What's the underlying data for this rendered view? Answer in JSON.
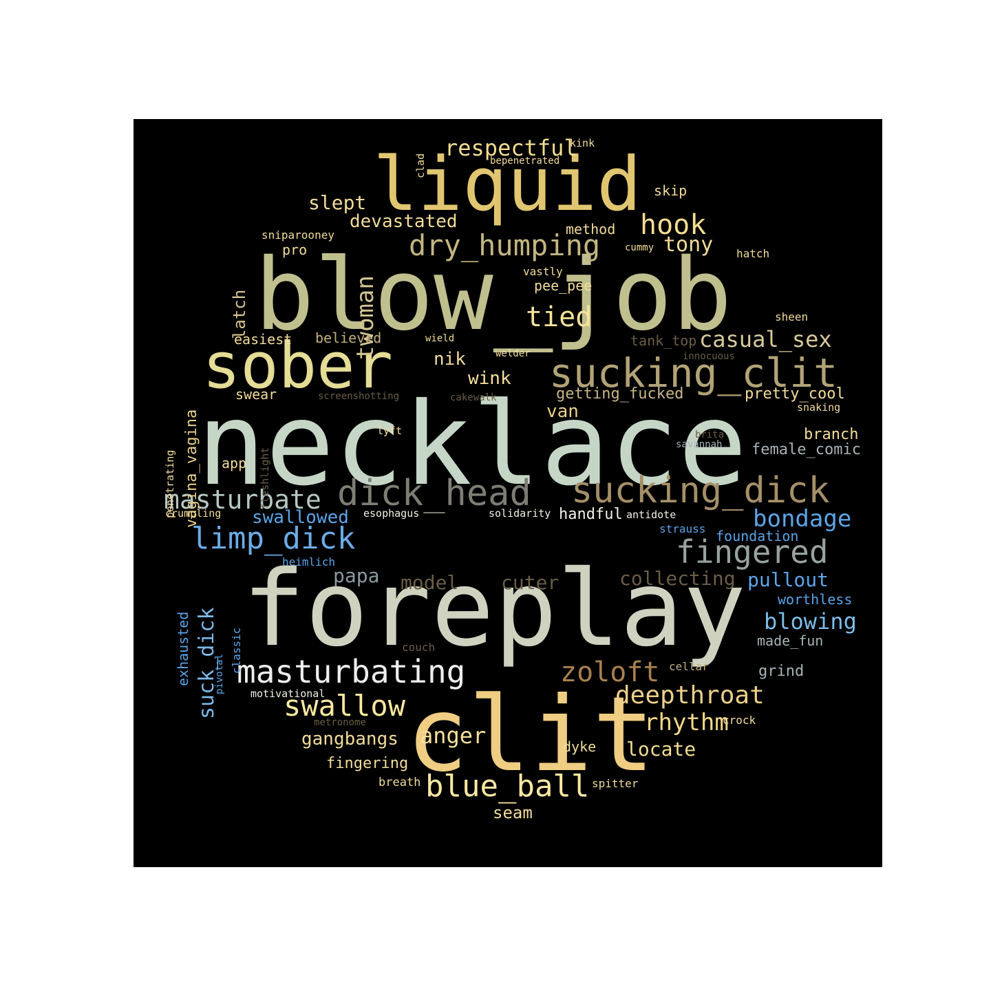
{
  "words": [
    {
      "id": "necklace",
      "text": "necklace",
      "color": "#c5d6c6"
    },
    {
      "id": "foreplay",
      "text": "foreplay",
      "color": "#d0d2c0"
    },
    {
      "id": "blow_job",
      "text": "blow_job",
      "color": "#c0bf8e"
    },
    {
      "id": "clit",
      "text": "clit",
      "color": "#efcd83"
    },
    {
      "id": "liquid",
      "text": "liquid",
      "color": "#e1c671"
    },
    {
      "id": "sober",
      "text": "sober",
      "color": "#e5dc96"
    },
    {
      "id": "sucking_clit",
      "text": "sucking_clit",
      "color": "#b2a377"
    },
    {
      "id": "sucking_dick",
      "text": "sucking_dick",
      "color": "#a58f68"
    },
    {
      "id": "dick_head",
      "text": "dick_head",
      "color": "#7e7d74"
    },
    {
      "id": "fingered",
      "text": "fingered",
      "color": "#97a39d"
    },
    {
      "id": "masturbating",
      "text": "masturbating",
      "color": "#eeeeee"
    },
    {
      "id": "masturbate",
      "text": "masturbate",
      "color": "#b5c7c3"
    },
    {
      "id": "limp_dick",
      "text": "limp_dick",
      "color": "#6cabe7"
    },
    {
      "id": "dry_humping",
      "text": "dry_humping",
      "color": "#c3b682"
    },
    {
      "id": "blue_ball",
      "text": "blue_ball",
      "color": "#fbe8a3"
    },
    {
      "id": "swallow",
      "text": "swallow",
      "color": "#fbe89f"
    },
    {
      "id": "zoloft",
      "text": "zoloft",
      "color": "#a8804f"
    },
    {
      "id": "deepthroat",
      "text": "deepthroat",
      "color": "#ecd08a"
    },
    {
      "id": "tied",
      "text": "tied",
      "color": "#f6e39a"
    },
    {
      "id": "hook",
      "text": "hook",
      "color": "#f4dd91"
    },
    {
      "id": "casual_sex",
      "text": "casual_sex",
      "color": "#d9c99b"
    },
    {
      "id": "bondage",
      "text": "bondage",
      "color": "#5ba5e8"
    },
    {
      "id": "respectful",
      "text": "respectful",
      "color": "#f4dd91"
    },
    {
      "id": "twoman",
      "text": "twoman",
      "color": "#d4c592"
    },
    {
      "id": "suck_dick",
      "text": "suck_dick",
      "color": "#7db9e9"
    },
    {
      "id": "rhythm",
      "text": "rhythm",
      "color": "#f3d88a"
    },
    {
      "id": "anger",
      "text": "anger",
      "color": "#f7e09a"
    },
    {
      "id": "blowing",
      "text": "blowing",
      "color": "#7cbde9"
    },
    {
      "id": "pullout",
      "text": "pullout",
      "color": "#5ba5e8"
    },
    {
      "id": "collecting",
      "text": "collecting",
      "color": "#6a5d47"
    },
    {
      "id": "devastated",
      "text": "devastated",
      "color": "#f3dc9a"
    },
    {
      "id": "tony",
      "text": "tony",
      "color": "#f3dc9a"
    },
    {
      "id": "slept",
      "text": "slept",
      "color": "#f3dc9a"
    },
    {
      "id": "swallowed",
      "text": "swallowed",
      "color": "#5ba5e8"
    },
    {
      "id": "locate",
      "text": "locate",
      "color": "#f4dd91"
    },
    {
      "id": "model",
      "text": "model",
      "color": "#6a5d47"
    },
    {
      "id": "cuter",
      "text": "cuter",
      "color": "#6a5d47"
    },
    {
      "id": "papa",
      "text": "papa",
      "color": "#8a9aa2"
    },
    {
      "id": "gangbangs",
      "text": "gangbangs",
      "color": "#f3dc9a"
    },
    {
      "id": "wink",
      "text": "wink",
      "color": "#f7e09a"
    },
    {
      "id": "nik",
      "text": "nik",
      "color": "#f3dc9a"
    },
    {
      "id": "van",
      "text": "van",
      "color": "#e8d08a"
    },
    {
      "id": "latch",
      "text": "latch",
      "color": "#d8c38e"
    },
    {
      "id": "vagina_vagina",
      "text": "vagina_vagina",
      "color": "#e8d08a"
    },
    {
      "id": "pretty_cool",
      "text": "pretty_cool",
      "color": "#f3dc9a"
    },
    {
      "id": "getting_fucked",
      "text": "getting_fucked",
      "color": "#c9b78a"
    },
    {
      "id": "branch",
      "text": "branch",
      "color": "#f3dc9a"
    },
    {
      "id": "female_comic",
      "text": "female_comic",
      "color": "#a6b3b8"
    },
    {
      "id": "fingering",
      "text": "fingering",
      "color": "#f3dc9a"
    },
    {
      "id": "easiest",
      "text": "easiest",
      "color": "#f3dc9a"
    },
    {
      "id": "believed",
      "text": "believed",
      "color": "#c3b07a"
    },
    {
      "id": "swear",
      "text": "swear",
      "color": "#f3dc9a"
    },
    {
      "id": "handful",
      "text": "handful",
      "color": "#f3f1e6"
    },
    {
      "id": "exhausted",
      "text": "exhausted",
      "color": "#5ba5e8"
    },
    {
      "id": "foundation",
      "text": "foundation",
      "color": "#5ba5e8"
    },
    {
      "id": "worthless",
      "text": "worthless",
      "color": "#5ba5e8"
    },
    {
      "id": "made_fun",
      "text": "made_fun",
      "color": "#a6b3b8"
    },
    {
      "id": "grind",
      "text": "grind",
      "color": "#a6b3b8"
    },
    {
      "id": "tank_top",
      "text": "tank_top",
      "color": "#6a5d47"
    },
    {
      "id": "seam",
      "text": "seam",
      "color": "#f3dc9a"
    },
    {
      "id": "dyke",
      "text": "dyke",
      "color": "#f3dc9a"
    },
    {
      "id": "app",
      "text": "app",
      "color": "#f3dc9a"
    },
    {
      "id": "method",
      "text": "method",
      "color": "#f3dc9a"
    },
    {
      "id": "pee_pee",
      "text": "pee_pee",
      "color": "#f3dc9a"
    },
    {
      "id": "skip",
      "text": "skip",
      "color": "#f3dc9a"
    },
    {
      "id": "pro",
      "text": "pro",
      "color": "#f3dc9a"
    },
    {
      "id": "sheen",
      "text": "sheen",
      "color": "#f3dc9a"
    },
    {
      "id": "hatch",
      "text": "hatch",
      "color": "#f3dc9a"
    },
    {
      "id": "strauss",
      "text": "strauss",
      "color": "#5ba5e8"
    },
    {
      "id": "heimlich",
      "text": "heimlich",
      "color": "#5ba5e8"
    },
    {
      "id": "classic",
      "text": "classic",
      "color": "#5ba5e8"
    },
    {
      "id": "pivotal",
      "text": "pivotal",
      "color": "#5ba5e8"
    },
    {
      "id": "couch",
      "text": "couch",
      "color": "#6a5d47"
    },
    {
      "id": "cellar",
      "text": "cellar",
      "color": "#c3b07a"
    },
    {
      "id": "crock",
      "text": "crock",
      "color": "#f3dc9a"
    },
    {
      "id": "breath",
      "text": "breath",
      "color": "#f3dc9a"
    },
    {
      "id": "spitter",
      "text": "spitter",
      "color": "#f3dc9a"
    },
    {
      "id": "sniparooney",
      "text": "sniparooney",
      "color": "#f3dc9a"
    },
    {
      "id": "vastly",
      "text": "vastly",
      "color": "#f3dc9a"
    },
    {
      "id": "cummy",
      "text": "cummy",
      "color": "#f3dc9a"
    },
    {
      "id": "wield",
      "text": "wield",
      "color": "#f3dc9a"
    },
    {
      "id": "welder",
      "text": "welder",
      "color": "#f3dc9a"
    },
    {
      "id": "innocuous",
      "text": "innocuous",
      "color": "#6a5d47"
    },
    {
      "id": "screenshotting",
      "text": "screenshotting",
      "color": "#6a5d47"
    },
    {
      "id": "cakewalk",
      "text": "cakewalk",
      "color": "#6a5d47"
    },
    {
      "id": "snaking",
      "text": "snaking",
      "color": "#f3dc9a"
    },
    {
      "id": "lyft",
      "text": "lyft",
      "color": "#f3dc9a"
    },
    {
      "id": "brita",
      "text": "brita",
      "color": "#6a5d47"
    },
    {
      "id": "savannah",
      "text": "savannah",
      "color": "#a6b3b8"
    },
    {
      "id": "fleshlight",
      "text": "fleshlight",
      "color": "#6a5d47"
    },
    {
      "id": "penetrating",
      "text": "penetrating",
      "color": "#f3dc9a"
    },
    {
      "id": "crumpling",
      "text": "crumpling",
      "color": "#f3dc9a"
    },
    {
      "id": "esophagus",
      "text": "esophagus",
      "color": "#f3f1e6"
    },
    {
      "id": "solidarity",
      "text": "solidarity",
      "color": "#f3f1e6"
    },
    {
      "id": "antidote",
      "text": "antidote",
      "color": "#f3f1e6"
    },
    {
      "id": "motivational",
      "text": "motivational",
      "color": "#f3f1e6"
    },
    {
      "id": "metronome",
      "text": "metronome",
      "color": "#6a5d47"
    },
    {
      "id": "kink",
      "text": "kink",
      "color": "#f3dc9a"
    },
    {
      "id": "bepenetrated",
      "text": "bepenetrated",
      "color": "#f3dc9a"
    },
    {
      "id": "clad",
      "text": "clad",
      "color": "#f3dc9a"
    }
  ]
}
